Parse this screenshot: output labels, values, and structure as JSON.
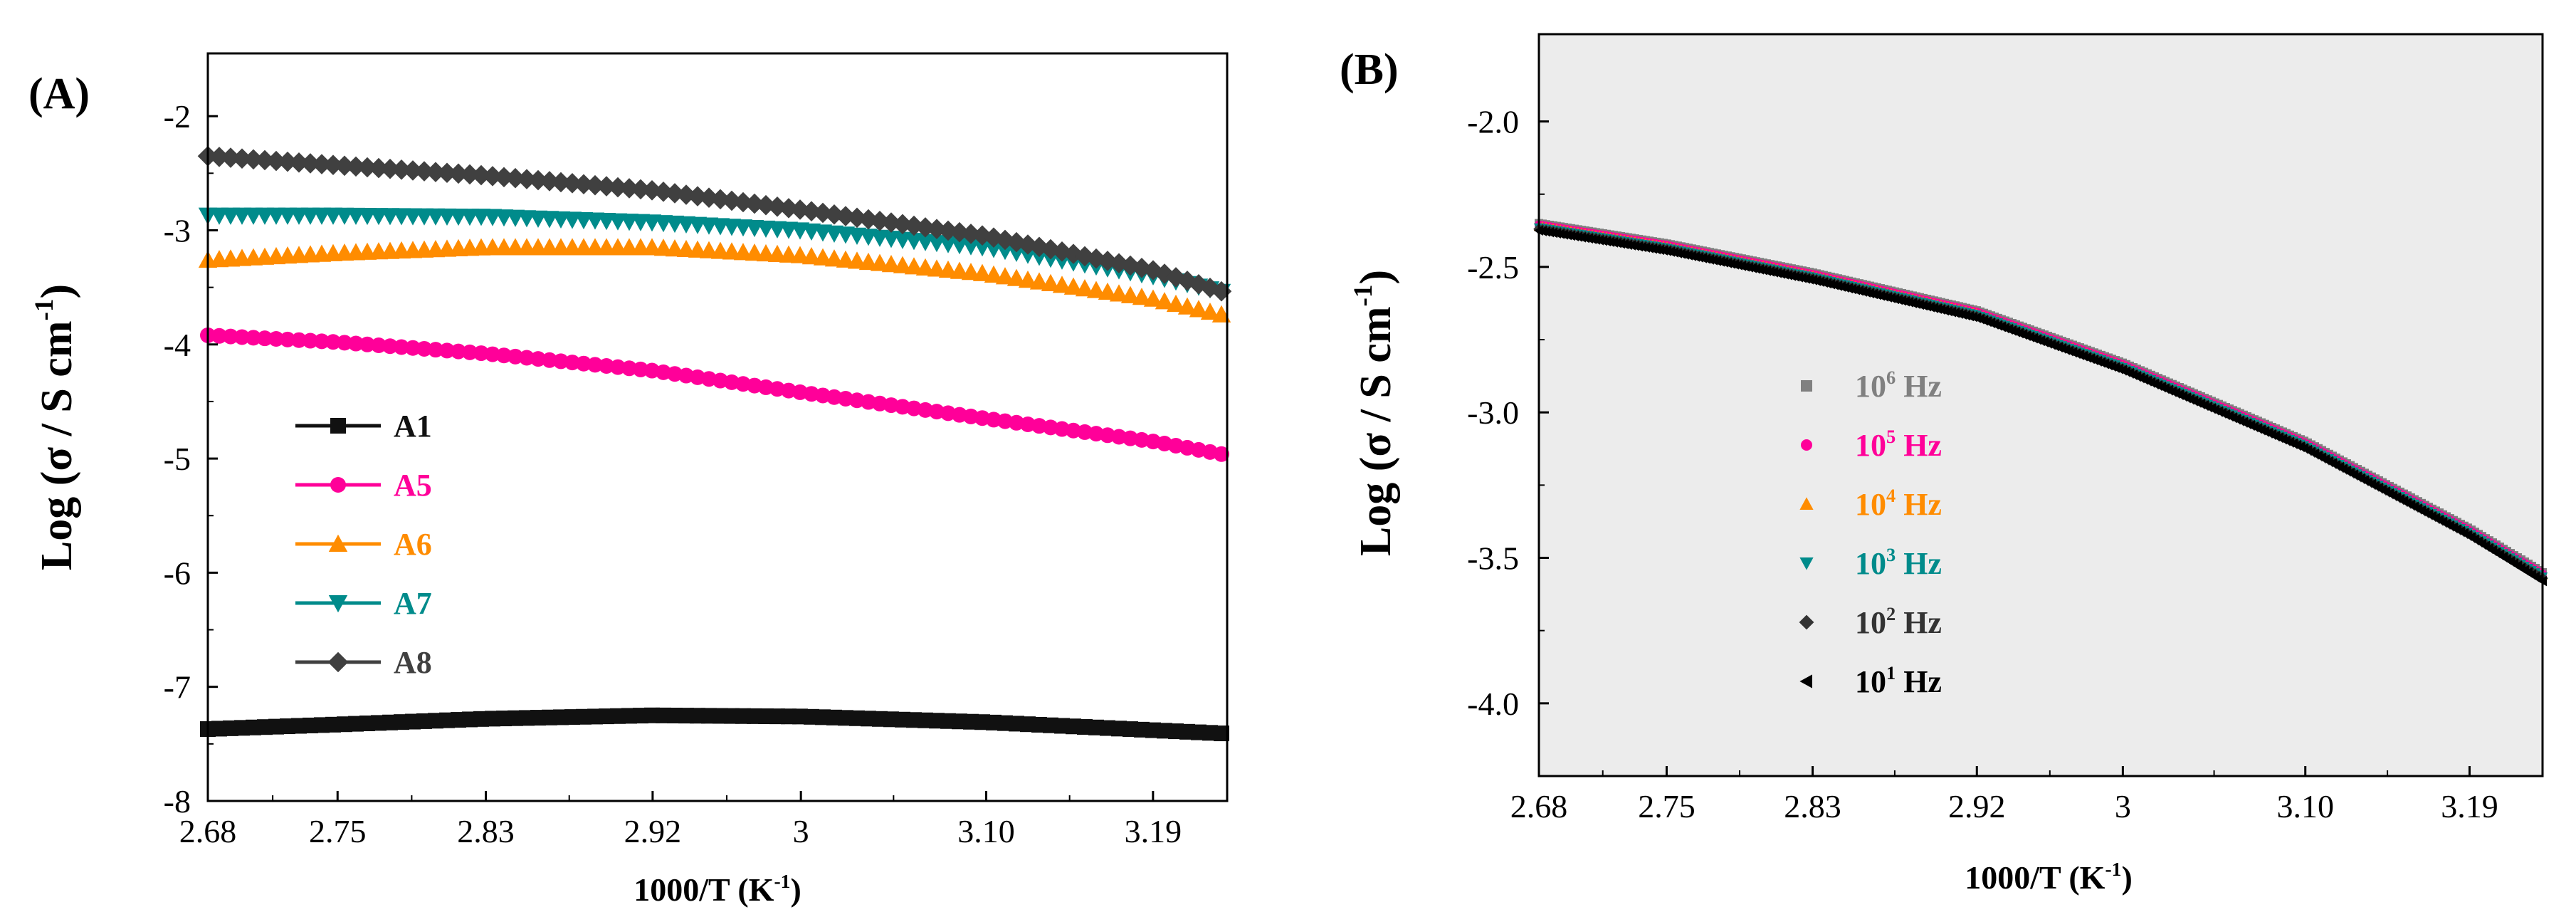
{
  "chart_data": [
    {
      "panel": "(A)",
      "type": "scatter",
      "xlabel": "1000/T (K",
      "xlabel_sup": "-1",
      "xlabel_end": ")",
      "ylabel": "Log (σ / S cm",
      "ylabel_sup": "-1",
      "ylabel_end": ")",
      "xlim": [
        2.68,
        3.23
      ],
      "ylim": [
        -8,
        -1.45
      ],
      "xticks": [
        2.68,
        2.75,
        2.83,
        2.92,
        3.0,
        3.1,
        3.19
      ],
      "xtick_labels": [
        "2.68",
        "2.75",
        "2.83",
        "2.92",
        "3",
        "3.10",
        "3.19"
      ],
      "yticks": [
        -8,
        -7,
        -6,
        -5,
        -4,
        -3,
        -2
      ],
      "ytick_labels": [
        "-8",
        "-7",
        "-6",
        "-5",
        "-4",
        "-3",
        "-2"
      ],
      "legend_position": "left-middle",
      "series": [
        {
          "name": "A1",
          "color": "#111111",
          "marker": "square",
          "x": [
            2.68,
            2.75,
            2.83,
            2.92,
            3.0,
            3.1,
            3.19,
            3.23
          ],
          "y": [
            -7.37,
            -7.33,
            -7.28,
            -7.25,
            -7.26,
            -7.31,
            -7.38,
            -7.41
          ]
        },
        {
          "name": "A5",
          "color": "#ff0099",
          "marker": "circle",
          "x": [
            2.68,
            2.75,
            2.83,
            2.92,
            3.0,
            3.1,
            3.19,
            3.23
          ],
          "y": [
            -3.92,
            -3.98,
            -4.08,
            -4.23,
            -4.42,
            -4.65,
            -4.85,
            -4.97
          ]
        },
        {
          "name": "A6",
          "color": "#ff8c00",
          "marker": "triangle-up",
          "x": [
            2.68,
            2.75,
            2.83,
            2.92,
            3.0,
            3.1,
            3.19,
            3.23
          ],
          "y": [
            -3.26,
            -3.2,
            -3.15,
            -3.15,
            -3.22,
            -3.38,
            -3.6,
            -3.75
          ]
        },
        {
          "name": "A7",
          "color": "#008b8b",
          "marker": "triangle-down",
          "x": [
            2.68,
            2.75,
            2.83,
            2.92,
            3.0,
            3.1,
            3.19,
            3.23
          ],
          "y": [
            -2.87,
            -2.87,
            -2.88,
            -2.93,
            -3.0,
            -3.15,
            -3.4,
            -3.55
          ]
        },
        {
          "name": "A8",
          "color": "#404040",
          "marker": "diamond",
          "x": [
            2.68,
            2.75,
            2.83,
            2.92,
            3.0,
            3.1,
            3.19,
            3.23
          ],
          "y": [
            -2.35,
            -2.43,
            -2.52,
            -2.65,
            -2.82,
            -3.05,
            -3.35,
            -3.55
          ]
        }
      ]
    },
    {
      "panel": "(B)",
      "type": "scatter",
      "xlabel": "1000/T (K",
      "xlabel_sup": "-1",
      "xlabel_end": ")",
      "ylabel": "Log (σ / S cm",
      "ylabel_sup": "-1",
      "ylabel_end": ")",
      "xlim": [
        2.68,
        3.23
      ],
      "ylim": [
        -4.25,
        -1.7
      ],
      "xticks": [
        2.68,
        2.75,
        2.83,
        2.92,
        3.0,
        3.1,
        3.19
      ],
      "xtick_labels": [
        "2.68",
        "2.75",
        "2.83",
        "2.92",
        "3",
        "3.10",
        "3.19"
      ],
      "yticks": [
        -4.0,
        -3.5,
        -3.0,
        -2.5,
        -2.0
      ],
      "ytick_labels": [
        "-4.0",
        "-3.5",
        "-3.0",
        "-2.5",
        "-2.0"
      ],
      "legend_position": "center-left",
      "series": [
        {
          "name": "10",
          "exp": "6",
          "unit": "Hz",
          "color": "#808080",
          "marker": "square",
          "x": [
            2.68,
            2.75,
            2.83,
            2.92,
            3.0,
            3.1,
            3.19,
            3.23
          ],
          "y": [
            -2.35,
            -2.42,
            -2.52,
            -2.65,
            -2.83,
            -3.1,
            -3.4,
            -3.55
          ]
        },
        {
          "name": "10",
          "exp": "5",
          "unit": "Hz",
          "color": "#ff0099",
          "marker": "circle",
          "x": [
            2.68,
            2.75,
            2.83,
            2.92,
            3.0,
            3.1,
            3.19,
            3.23
          ],
          "y": [
            -2.355,
            -2.425,
            -2.525,
            -2.655,
            -2.835,
            -3.105,
            -3.405,
            -3.555
          ]
        },
        {
          "name": "10",
          "exp": "4",
          "unit": "Hz",
          "color": "#ff8c00",
          "marker": "triangle-up",
          "x": [
            2.68,
            2.75,
            2.83,
            2.92,
            3.0,
            3.1,
            3.19,
            3.23
          ],
          "y": [
            -2.36,
            -2.43,
            -2.53,
            -2.66,
            -2.84,
            -3.11,
            -3.41,
            -3.56
          ]
        },
        {
          "name": "10",
          "exp": "3",
          "unit": "Hz",
          "color": "#008b8b",
          "marker": "triangle-down",
          "x": [
            2.68,
            2.75,
            2.83,
            2.92,
            3.0,
            3.1,
            3.19,
            3.23
          ],
          "y": [
            -2.365,
            -2.435,
            -2.535,
            -2.665,
            -2.845,
            -3.115,
            -3.415,
            -3.565
          ]
        },
        {
          "name": "10",
          "exp": "2",
          "unit": "Hz",
          "color": "#333333",
          "marker": "diamond",
          "x": [
            2.68,
            2.75,
            2.83,
            2.92,
            3.0,
            3.1,
            3.19,
            3.23
          ],
          "y": [
            -2.37,
            -2.44,
            -2.54,
            -2.67,
            -2.85,
            -3.12,
            -3.42,
            -3.57
          ]
        },
        {
          "name": "10",
          "exp": "1",
          "unit": "Hz",
          "color": "#000000",
          "marker": "triangle-left",
          "x": [
            2.68,
            2.75,
            2.83,
            2.92,
            3.0,
            3.1,
            3.19,
            3.23
          ],
          "y": [
            -2.375,
            -2.445,
            -2.545,
            -2.675,
            -2.855,
            -3.125,
            -3.425,
            -3.58
          ]
        }
      ]
    }
  ]
}
